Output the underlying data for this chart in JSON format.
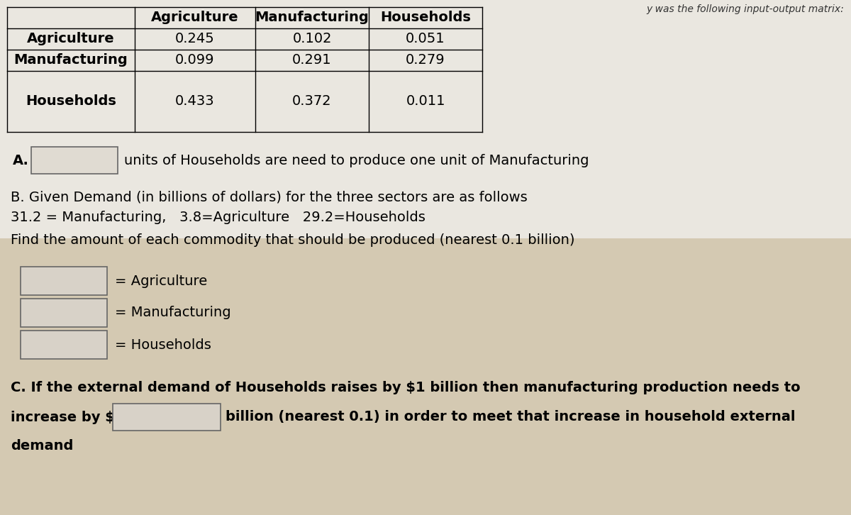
{
  "bg_color_top": "#e8e4de",
  "bg_color_bottom": "#c8b89a",
  "table_header_row": [
    "Agriculture",
    "Manufacturing",
    "Households"
  ],
  "table_row_labels": [
    "Agriculture",
    "Manufacturing",
    "Households"
  ],
  "table_data": [
    [
      "0.245",
      "0.102",
      "0.051"
    ],
    [
      "0.099",
      "0.291",
      "0.279"
    ],
    [
      "0.433",
      "0.372",
      "0.011"
    ]
  ],
  "section_A_label": "A.",
  "section_A_text": "units of Households are need to produce one unit of Manufacturing",
  "section_B_line1": "B. Given Demand (in billions of dollars) for the three sectors are as follows",
  "section_B_line2": "31.2 = Manufacturing,   3.8=Agriculture   29.2=Households",
  "section_B_line3": "Find the amount of each commodity that should be produced (nearest 0.1 billion)",
  "output_labels": [
    "= Agriculture",
    "= Manufacturing",
    "= Households"
  ],
  "section_C_line1": "C. If the external demand of Households raises by $1 billion then manufacturing production needs to",
  "section_C_line2": "billion (nearest 0.1) in order to meet that increase in household external",
  "section_C_line3": "demand",
  "increase_prefix": "increase by $",
  "top_right_text": "y was the following input-output matrix:",
  "font_size": 14,
  "font_size_small": 12
}
